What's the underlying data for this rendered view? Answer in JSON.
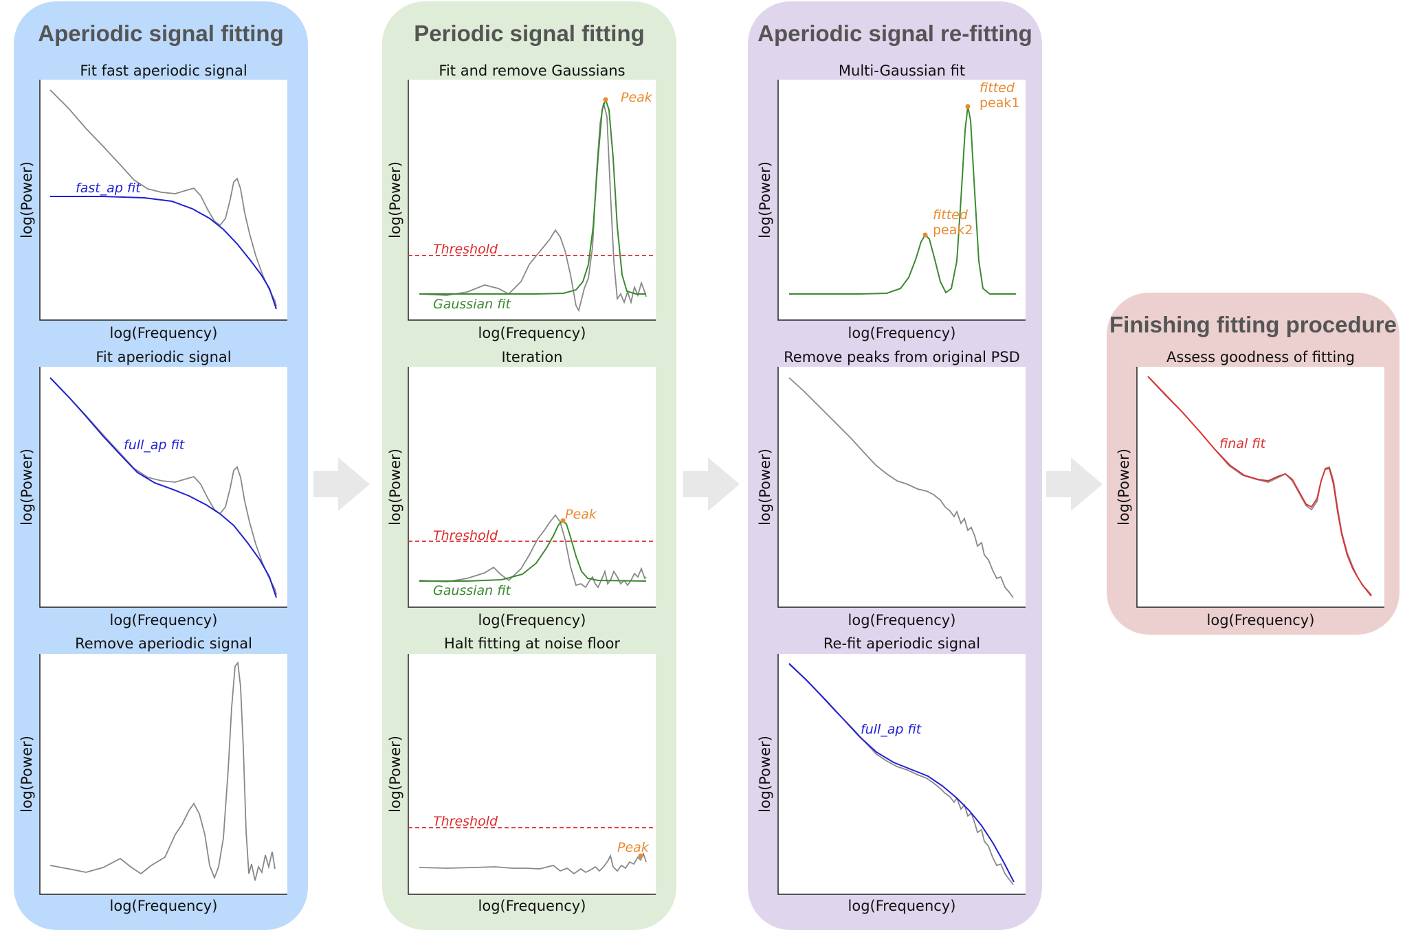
{
  "colors": {
    "panel_aperiodic": "#bcdafc",
    "panel_periodic": "#dfecd7",
    "panel_refit": "#dfd5ed",
    "panel_finish": "#eccfcf",
    "arrow": "#e8e8e8",
    "psd": "#888888",
    "aperiodic_fit": "#1f1fd6",
    "gaussian_fit": "#3a8a2e",
    "threshold": "#dd2a2a",
    "peak": "#e88a30",
    "final_fit": "#dd3333"
  },
  "panels": [
    {
      "title": "Aperiodic signal fitting"
    },
    {
      "title": "Periodic signal fitting"
    },
    {
      "title": "Aperiodic signal re-fitting"
    },
    {
      "title": "Finishing fitting procedure"
    }
  ],
  "axis_labels": {
    "x": "log(Frequency)",
    "y": "log(Power)"
  },
  "plots": [
    {
      "id": "p1",
      "title": "Fit fast aperiodic signal",
      "annotations": [
        "fast_ap fit"
      ]
    },
    {
      "id": "p2",
      "title": "Fit aperiodic signal",
      "annotations": [
        "full_ap fit"
      ]
    },
    {
      "id": "p3",
      "title": "Remove aperiodic signal",
      "annotations": []
    },
    {
      "id": "p4",
      "title": "Fit and remove Gaussians",
      "annotations": [
        "Peak",
        "Threshold",
        "Gaussian fit"
      ]
    },
    {
      "id": "p5",
      "title": "Iteration",
      "annotations": [
        "Peak",
        "Threshold",
        "Gaussian fit"
      ]
    },
    {
      "id": "p6",
      "title": "Halt fitting at noise floor",
      "annotations": [
        "Threshold",
        "Peak"
      ]
    },
    {
      "id": "p7",
      "title": "Multi-Gaussian fit",
      "annotations": [
        "fitted",
        "peak1",
        "fitted",
        "peak2"
      ]
    },
    {
      "id": "p8",
      "title": "Remove peaks from original PSD",
      "annotations": []
    },
    {
      "id": "p9",
      "title": "Re-fit aperiodic signal",
      "annotations": [
        "full_ap fit"
      ]
    },
    {
      "id": "p10",
      "title": "Assess goodness of fitting",
      "annotations": [
        "final fit"
      ]
    }
  ]
}
